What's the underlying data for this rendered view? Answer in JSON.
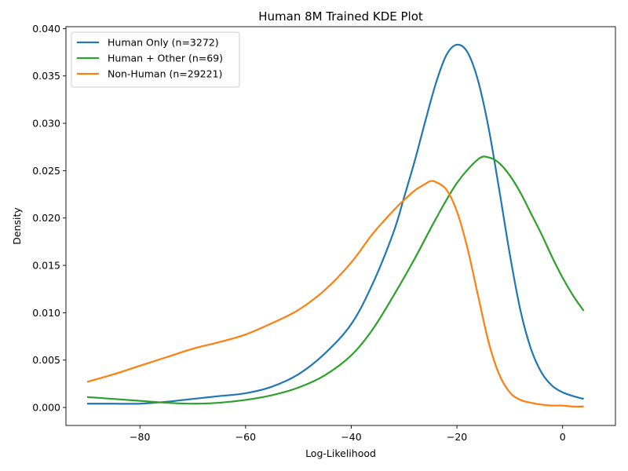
{
  "chart_data": {
    "type": "line",
    "title": "Human 8M Trained KDE Plot",
    "xlabel": "Log-Likelihood",
    "ylabel": "Density",
    "xlim": [
      -94,
      10
    ],
    "ylim": [
      -0.0019,
      0.0402
    ],
    "xticks": [
      -80,
      -60,
      -40,
      -20,
      0
    ],
    "xtick_labels": [
      "−80",
      "−60",
      "−40",
      "−20",
      "0"
    ],
    "yticks": [
      0.0,
      0.005,
      0.01,
      0.015,
      0.02,
      0.025,
      0.03,
      0.035,
      0.04
    ],
    "ytick_labels": [
      "0.000",
      "0.005",
      "0.010",
      "0.015",
      "0.020",
      "0.025",
      "0.030",
      "0.035",
      "0.040"
    ],
    "grid": false,
    "legend_position": "upper-left",
    "series": [
      {
        "name": "Human Only (n=3272)",
        "color": "#1f77b4",
        "x": [
          -90,
          -85,
          -80,
          -75,
          -70,
          -65,
          -60,
          -55,
          -50,
          -45,
          -40,
          -36,
          -32,
          -30,
          -28,
          -26,
          -24,
          -22,
          -20,
          -18,
          -16,
          -14,
          -12,
          -10,
          -8,
          -6,
          -4,
          -2,
          0,
          2,
          4
        ],
        "y": [
          0.0004,
          0.0004,
          0.0004,
          0.0006,
          0.0009,
          0.0012,
          0.0015,
          0.0022,
          0.0035,
          0.0057,
          0.0088,
          0.013,
          0.0185,
          0.0222,
          0.026,
          0.0302,
          0.0342,
          0.0372,
          0.0383,
          0.0375,
          0.0345,
          0.0295,
          0.023,
          0.0162,
          0.0103,
          0.0062,
          0.0037,
          0.0023,
          0.0016,
          0.0012,
          0.0009
        ]
      },
      {
        "name": "Human + Other (n=69)",
        "color": "#2ca02c",
        "x": [
          -90,
          -85,
          -80,
          -75,
          -70,
          -65,
          -60,
          -55,
          -50,
          -45,
          -40,
          -36,
          -32,
          -28,
          -24,
          -20,
          -16,
          -14,
          -12,
          -10,
          -8,
          -6,
          -4,
          -2,
          0,
          2,
          4
        ],
        "y": [
          0.0011,
          0.0009,
          0.0007,
          0.0005,
          0.0004,
          0.0005,
          0.0008,
          0.0013,
          0.0021,
          0.0034,
          0.0055,
          0.0082,
          0.0118,
          0.0157,
          0.0199,
          0.0237,
          0.0262,
          0.0264,
          0.0258,
          0.0245,
          0.0227,
          0.0205,
          0.0183,
          0.0159,
          0.0137,
          0.0118,
          0.0102
        ]
      },
      {
        "name": "Non-Human (n=29221)",
        "color": "#ff7f0e",
        "x": [
          -90,
          -85,
          -80,
          -75,
          -70,
          -65,
          -60,
          -55,
          -50,
          -45,
          -40,
          -36,
          -32,
          -30,
          -28,
          -26,
          -25,
          -24,
          -22,
          -20,
          -18,
          -16,
          -14,
          -12,
          -10,
          -8,
          -6,
          -4,
          -2,
          0,
          2,
          4
        ],
        "y": [
          0.0027,
          0.0035,
          0.0044,
          0.0053,
          0.0062,
          0.0069,
          0.0077,
          0.0089,
          0.0103,
          0.0124,
          0.0153,
          0.0183,
          0.0208,
          0.0219,
          0.0229,
          0.0236,
          0.0239,
          0.0238,
          0.023,
          0.0207,
          0.0168,
          0.0118,
          0.0069,
          0.0035,
          0.0016,
          0.0008,
          0.0005,
          0.0003,
          0.0002,
          0.0002,
          0.0001,
          0.0001
        ]
      }
    ]
  }
}
